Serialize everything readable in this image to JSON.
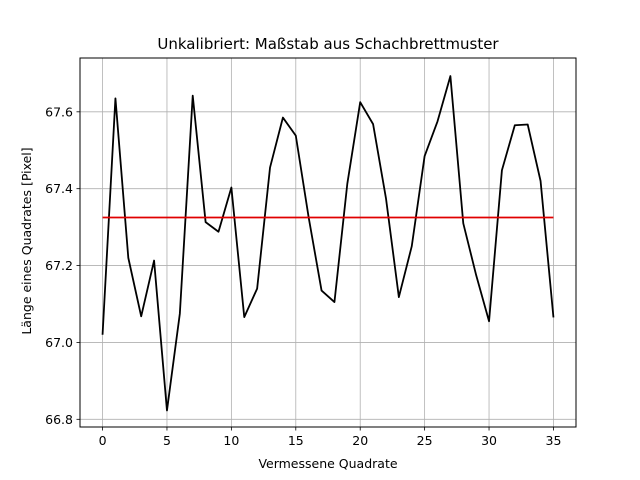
{
  "chart_data": {
    "type": "line",
    "title": "Unkalibriert: Maßstab aus Schachbrettmuster",
    "xlabel": "Vermessene Quadrate",
    "ylabel": "Länge eines Quadrates [Pixel]",
    "xlim": [
      -1.75,
      36.75
    ],
    "ylim": [
      66.78,
      67.74
    ],
    "xticks": [
      0,
      5,
      10,
      15,
      20,
      25,
      30,
      35
    ],
    "yticks": [
      66.8,
      67.0,
      67.2,
      67.4,
      67.6
    ],
    "grid": true,
    "series": [
      {
        "color": "#000000",
        "x": [
          0,
          1,
          2,
          3,
          4,
          5,
          6,
          7,
          8,
          9,
          10,
          11,
          12,
          13,
          14,
          15,
          16,
          17,
          18,
          19,
          20,
          21,
          22,
          23,
          24,
          25,
          26,
          27,
          28,
          29,
          30,
          31,
          32,
          33,
          34,
          35
        ],
        "values": [
          67.02,
          67.635,
          67.22,
          67.068,
          67.213,
          66.823,
          67.075,
          67.642,
          67.313,
          67.288,
          67.403,
          67.066,
          67.14,
          67.455,
          67.585,
          67.538,
          67.325,
          67.135,
          67.105,
          67.413,
          67.625,
          67.568,
          67.375,
          67.118,
          67.25,
          67.485,
          67.575,
          67.693,
          67.31,
          67.175,
          67.055,
          67.448,
          67.565,
          67.567,
          67.42,
          67.065
        ]
      },
      {
        "color": "#e00000",
        "x": [
          0,
          35
        ],
        "values": [
          67.325,
          67.325
        ]
      }
    ]
  }
}
